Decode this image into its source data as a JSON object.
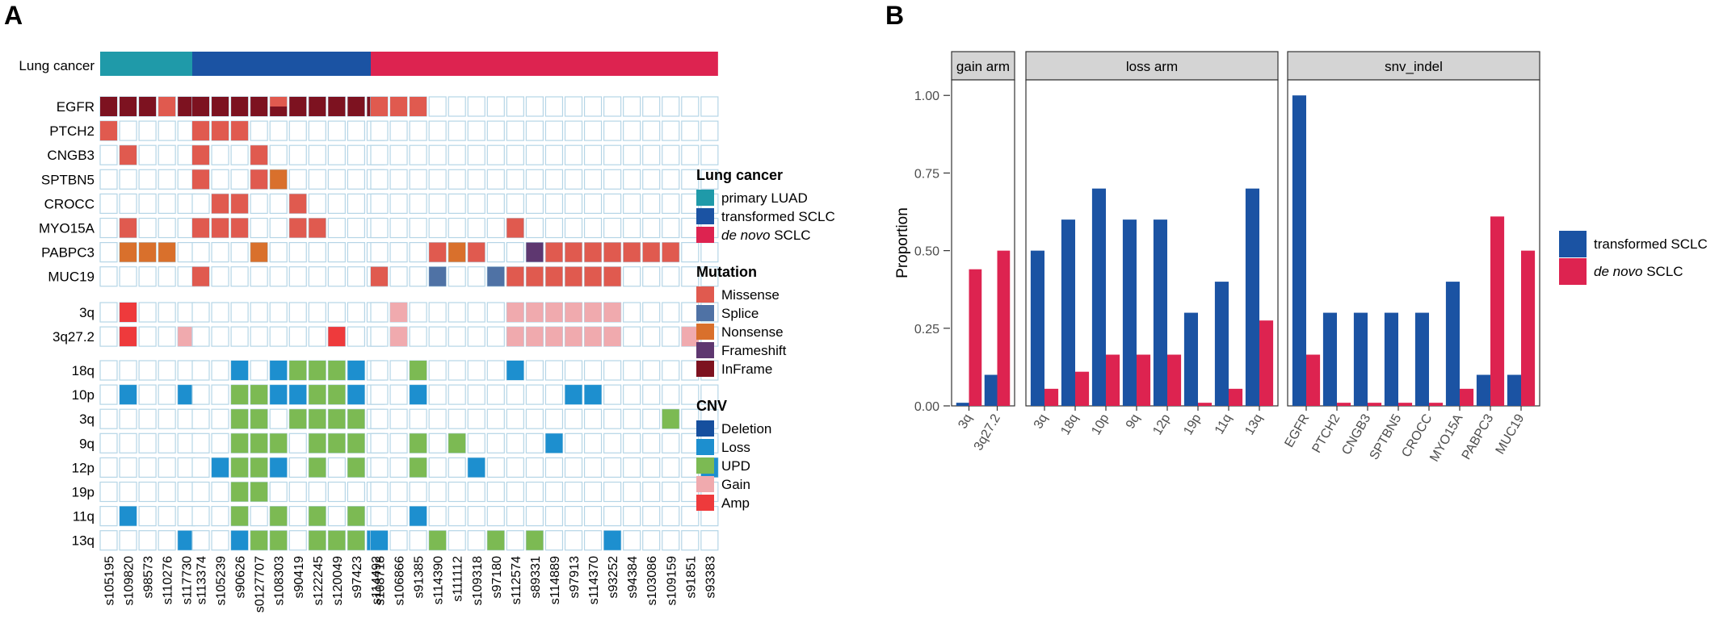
{
  "panels": {
    "a_label": "A",
    "b_label": "B"
  },
  "chart_data": [
    {
      "type": "heatmap",
      "title": "",
      "annotation_row": "Lung cancer",
      "samples": [
        "s105195",
        "s109820",
        "s98573",
        "s110276",
        "s117730",
        "s113374",
        "s105239",
        "s90626",
        "s0127707",
        "s108303",
        "s90419",
        "s122245",
        "s120049",
        "s97423",
        "s114492",
        "s108718",
        "s106866",
        "s91385",
        "s114390",
        "s111112",
        "s109318",
        "s97180",
        "s112574",
        "s89331",
        "s114889",
        "s97913",
        "s114370",
        "s93252",
        "s94384",
        "s103086",
        "s109159",
        "s91851",
        "s93383"
      ],
      "group_sizes": [
        5,
        10,
        18
      ],
      "groups": [
        "primary LUAD",
        "transformed SCLC",
        "de novo SCLC"
      ],
      "mutation_genes": [
        "EGFR",
        "PTCH2",
        "CNGB3",
        "SPTBN5",
        "CROCC",
        "MYO15A",
        "PABPC3",
        "MUC19"
      ],
      "cnv_gain_regions": [
        "3q",
        "3q27.2"
      ],
      "cnv_loss_regions": [
        "18q",
        "10p",
        "3q",
        "9q",
        "12p",
        "19p",
        "11q",
        "13q"
      ],
      "mutations": {
        "EGFR": [
          "IF",
          "IF",
          "IF",
          "MS",
          "IF",
          "IF",
          "IF",
          "IF",
          "IF",
          "MS/IF",
          "IF",
          "IF",
          "IF",
          "IF",
          "IF",
          "MS",
          "MS",
          "MS",
          "",
          "",
          "",
          "",
          "",
          "",
          "",
          "",
          "",
          "",
          "",
          "",
          "",
          "",
          ""
        ],
        "PTCH2": [
          "MS",
          "",
          "",
          "",
          "",
          "MS",
          "MS",
          "MS",
          "",
          "",
          "",
          "",
          "",
          "",
          "",
          "",
          "",
          "",
          "",
          "",
          "",
          "",
          "",
          "",
          "",
          "",
          "",
          "",
          "",
          "",
          "",
          "",
          ""
        ],
        "CNGB3": [
          "",
          "MS",
          "",
          "",
          "",
          "MS",
          "",
          "",
          "MS",
          "",
          "",
          "",
          "",
          "",
          "",
          "",
          "",
          "",
          "",
          "",
          "",
          "",
          "",
          "",
          "",
          "",
          "",
          "",
          "",
          "",
          "",
          "",
          ""
        ],
        "SPTBN5": [
          "",
          "",
          "",
          "",
          "",
          "MS",
          "",
          "",
          "MS",
          "NS",
          "",
          "",
          "",
          "",
          "",
          "",
          "",
          "",
          "",
          "",
          "",
          "",
          "",
          "",
          "",
          "",
          "",
          "",
          "",
          "",
          "",
          "",
          ""
        ],
        "CROCC": [
          "",
          "",
          "",
          "",
          "",
          "",
          "MS",
          "MS",
          "",
          "",
          "MS",
          "",
          "",
          "",
          "",
          "",
          "",
          "",
          "",
          "",
          "",
          "",
          "",
          "",
          "",
          "",
          "",
          "",
          "",
          "",
          "",
          "",
          ""
        ],
        "MYO15A": [
          "",
          "MS",
          "",
          "",
          "",
          "MS",
          "MS",
          "MS",
          "",
          "",
          "MS",
          "MS",
          "",
          "",
          "",
          "",
          "",
          "",
          "",
          "",
          "",
          "",
          "MS",
          "",
          "",
          "",
          "",
          "",
          "",
          "",
          "",
          "",
          ""
        ],
        "PABPC3": [
          "",
          "NS",
          "NS",
          "NS",
          "",
          "",
          "",
          "",
          "NS",
          "",
          "",
          "",
          "",
          "",
          "",
          "",
          "",
          "",
          "MS",
          "NS",
          "MS",
          "",
          "",
          "FS",
          "MS",
          "MS",
          "MS",
          "MS",
          "MS",
          "MS",
          "MS",
          "",
          ""
        ],
        "MUC19": [
          "",
          "",
          "",
          "",
          "",
          "MS",
          "",
          "",
          "",
          "",
          "",
          "",
          "",
          "",
          "",
          "MS",
          "",
          "",
          "SP",
          "",
          "",
          "SP",
          "MS",
          "MS",
          "MS",
          "MS",
          "MS",
          "MS",
          "",
          "",
          "",
          "",
          ""
        ]
      },
      "cnv_gain": {
        "3q": [
          "",
          "AMP",
          "",
          "",
          "",
          "",
          "",
          "",
          "",
          "",
          "",
          "",
          "",
          "",
          "",
          "",
          "GAIN",
          "",
          "",
          "",
          "",
          "",
          "GAIN",
          "GAIN",
          "GAIN",
          "GAIN",
          "GAIN",
          "GAIN",
          "",
          "",
          "",
          "",
          ""
        ],
        "3q27.2": [
          "",
          "AMP",
          "",
          "",
          "GAIN",
          "",
          "",
          "",
          "",
          "",
          "",
          "",
          "AMP",
          "",
          "",
          "",
          "GAIN",
          "",
          "",
          "",
          "",
          "",
          "GAIN",
          "GAIN",
          "GAIN",
          "GAIN",
          "GAIN",
          "GAIN",
          "",
          "",
          "",
          "GAIN",
          ""
        ]
      },
      "cnv_loss": {
        "18q": [
          "",
          "",
          "",
          "",
          "",
          "",
          "",
          "LOSS",
          "",
          "LOSS",
          "UPD",
          "UPD",
          "UPD",
          "LOSS",
          "",
          "",
          "",
          "UPD",
          "",
          "",
          "",
          "",
          "LOSS",
          "",
          "",
          "",
          "",
          "",
          "",
          "",
          "",
          "",
          ""
        ],
        "10p": [
          "",
          "LOSS",
          "",
          "",
          "LOSS",
          "",
          "",
          "UPD",
          "UPD",
          "LOSS",
          "LOSS",
          "UPD",
          "UPD",
          "LOSS",
          "",
          "",
          "",
          "LOSS",
          "",
          "",
          "",
          "",
          "",
          "",
          "",
          "LOSS",
          "LOSS",
          "",
          "",
          "",
          "",
          "",
          ""
        ],
        "3q": [
          "",
          "",
          "",
          "",
          "",
          "",
          "",
          "UPD",
          "UPD",
          "",
          "UPD",
          "UPD",
          "UPD",
          "UPD",
          "",
          "",
          "",
          "",
          "",
          "",
          "",
          "",
          "",
          "",
          "",
          "",
          "",
          "",
          "",
          "",
          "UPD",
          "",
          ""
        ],
        "9q": [
          "",
          "",
          "",
          "",
          "",
          "",
          "",
          "UPD",
          "UPD",
          "UPD",
          "",
          "UPD",
          "UPD",
          "UPD",
          "",
          "",
          "",
          "UPD",
          "",
          "UPD",
          "",
          "",
          "",
          "",
          "LOSS",
          "",
          "",
          "",
          "",
          "",
          "",
          "",
          ""
        ],
        "12p": [
          "",
          "",
          "",
          "",
          "",
          "",
          "LOSS",
          "UPD",
          "UPD",
          "LOSS",
          "",
          "UPD",
          "",
          "UPD",
          "",
          "",
          "",
          "UPD",
          "",
          "",
          "LOSS",
          "",
          "",
          "",
          "",
          "",
          "",
          "",
          "",
          "",
          "",
          "",
          "LOSS"
        ],
        "19p": [
          "",
          "",
          "",
          "",
          "",
          "",
          "",
          "UPD",
          "UPD",
          "",
          "",
          "",
          "",
          "",
          "",
          "",
          "",
          "",
          "",
          "",
          "",
          "",
          "",
          "",
          "",
          "",
          "",
          "",
          "",
          "",
          "",
          "",
          ""
        ],
        "11q": [
          "",
          "LOSS",
          "",
          "",
          "",
          "",
          "",
          "UPD",
          "",
          "UPD",
          "",
          "UPD",
          "",
          "UPD",
          "",
          "",
          "",
          "LOSS",
          "",
          "",
          "",
          "",
          "",
          "",
          "",
          "",
          "",
          "",
          "",
          "",
          "",
          "",
          ""
        ],
        "13q": [
          "",
          "",
          "",
          "",
          "LOSS",
          "",
          "",
          "LOSS",
          "UPD",
          "UPD",
          "",
          "UPD",
          "UPD",
          "UPD",
          "LOSS",
          "LOSS",
          "",
          "",
          "UPD",
          "",
          "",
          "UPD",
          "",
          "UPD",
          "",
          "",
          "",
          "LOSS",
          "",
          "",
          "",
          "",
          ""
        ]
      },
      "legend": {
        "lung_cancer": {
          "title": "Lung cancer",
          "items": [
            "primary LUAD",
            "transformed SCLC",
            "de novo SCLC"
          ]
        },
        "mutation": {
          "title": "Mutation",
          "items": [
            "Missense",
            "Splice",
            "Nonsense",
            "Frameshift",
            "InFrame"
          ]
        },
        "cnv": {
          "title": "CNV",
          "items": [
            "Deletion",
            "Loss",
            "UPD",
            "Gain",
            "Amp"
          ]
        }
      }
    },
    {
      "type": "bar",
      "title": "",
      "ylabel": "Proportion",
      "xlabel": "",
      "ylim": [
        0,
        1.05
      ],
      "yticks": [
        "0.00",
        "0.25",
        "0.50",
        "0.75",
        "1.00"
      ],
      "facets": [
        {
          "name": "gain arm",
          "categories": [
            "3q",
            "3q27.2"
          ],
          "transformed": [
            0.01,
            0.1
          ],
          "denovo": [
            0.44,
            0.5
          ]
        },
        {
          "name": "loss arm",
          "categories": [
            "3q",
            "18q",
            "10p",
            "9q",
            "12p",
            "19p",
            "11q",
            "13q"
          ],
          "transformed": [
            0.5,
            0.6,
            0.7,
            0.6,
            0.6,
            0.3,
            0.4,
            0.7
          ],
          "denovo": [
            0.055,
            0.11,
            0.165,
            0.165,
            0.165,
            0.01,
            0.055,
            0.275
          ]
        },
        {
          "name": "snv_indel",
          "categories": [
            "EGFR",
            "PTCH2",
            "CNGB3",
            "SPTBN5",
            "CROCC",
            "MYO15A",
            "PABPC3",
            "MUC19"
          ],
          "transformed": [
            1.0,
            0.3,
            0.3,
            0.3,
            0.3,
            0.4,
            0.1,
            0.1
          ],
          "denovo": [
            0.165,
            0.01,
            0.01,
            0.01,
            0.01,
            0.055,
            0.61,
            0.5
          ]
        }
      ],
      "series": [
        {
          "name": "transformed SCLC"
        },
        {
          "name": "de novo SCLC"
        }
      ],
      "legend_position": "right"
    }
  ],
  "colors": {
    "primary_luad": "#1f9aa9",
    "transformed": "#1b53a3",
    "denovo": "#dd2350",
    "missense": "#e05a4f",
    "splice": "#4f72a5",
    "nonsense": "#d9702c",
    "frameshift": "#5e3770",
    "inframe": "#7d1220",
    "deletion": "#164f9e",
    "loss": "#1d8fcf",
    "upd": "#7cba53",
    "gain": "#f0aaae",
    "amp": "#ee3a3c",
    "cell_border": "#b5d5e6",
    "strip": "#d4d4d4"
  }
}
